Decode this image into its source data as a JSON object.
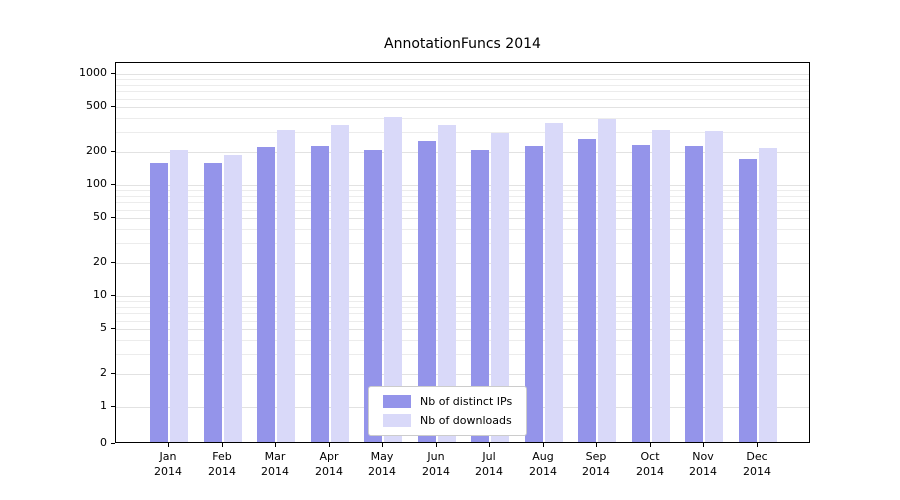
{
  "chart_data": {
    "type": "bar",
    "title": "AnnotationFuncs 2014",
    "xlabel": "",
    "ylabel": "",
    "yscale": "symlog (log scale above 1, axis includes 0)",
    "categories": [
      "Jan 2014",
      "Feb 2014",
      "Mar 2014",
      "Apr 2014",
      "May 2014",
      "Jun 2014",
      "Jul 2014",
      "Aug 2014",
      "Sep 2014",
      "Oct 2014",
      "Nov 2014",
      "Dec 2014"
    ],
    "yticks": [
      0,
      1,
      2,
      5,
      10,
      20,
      50,
      100,
      200,
      500,
      1000
    ],
    "ylim": [
      0,
      1250
    ],
    "grid": "horizontal log minor gridlines",
    "legend_position": "lower center",
    "series": [
      {
        "name": "Nb of distinct IPs",
        "color": "#9494ea",
        "values": [
          150,
          150,
          210,
          215,
          200,
          240,
          200,
          215,
          250,
          220,
          215,
          165
        ]
      },
      {
        "name": "Nb of downloads",
        "color": "#d9d9f9",
        "values": [
          200,
          180,
          300,
          330,
          390,
          330,
          280,
          350,
          380,
          300,
          295,
          205
        ]
      }
    ]
  }
}
